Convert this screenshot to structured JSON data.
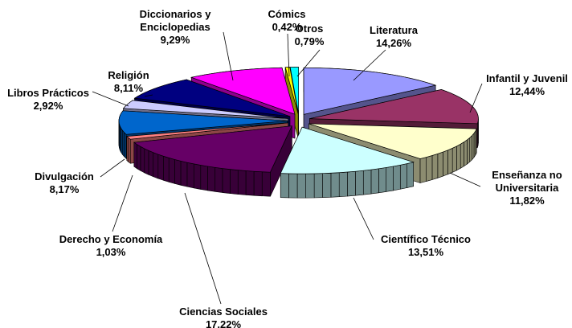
{
  "chart_data": {
    "type": "pie",
    "categories": [
      "Literatura",
      "Infantil y Juvenil",
      "Enseñanza no Universitaria",
      "Científico Técnico",
      "Ciencias Sociales",
      "Derecho y Economía",
      "Divulgación",
      "Libros Prácticos",
      "Religión",
      "Diccionarios y Enciclopedias",
      "Cómics",
      "Otros"
    ],
    "values": [
      14.26,
      12.44,
      11.82,
      13.51,
      17.22,
      1.03,
      8.17,
      2.92,
      8.11,
      9.29,
      0.42,
      0.79
    ],
    "value_labels": [
      "14,26%",
      "12,44%",
      "11,82%",
      "13,51%",
      "17,22%",
      "1,03%",
      "8,17%",
      "2,92%",
      "8,11%",
      "9,29%",
      "0,42%",
      "0,79%"
    ],
    "colors": [
      "#9999ff",
      "#993366",
      "#ffffcc",
      "#ccffff",
      "#660066",
      "#ff8080",
      "#0066cc",
      "#ccccff",
      "#000080",
      "#ff00ff",
      "#ffff00",
      "#00ffff"
    ]
  }
}
